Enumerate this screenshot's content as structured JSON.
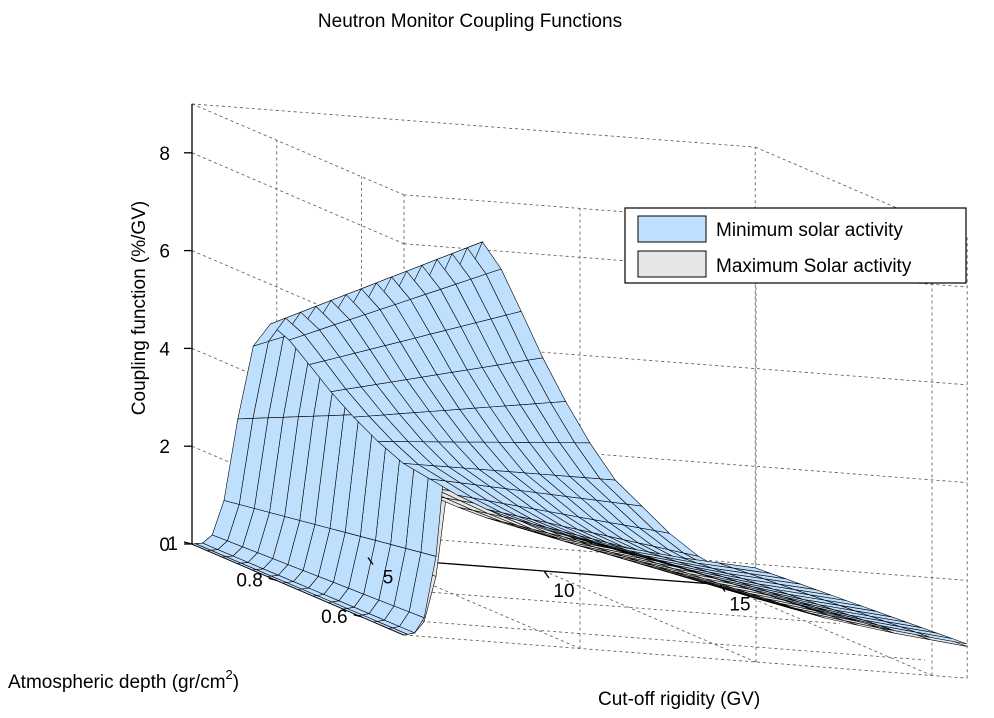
{
  "chart_data": {
    "type": "surface",
    "title": "Neutron Monitor Coupling Functions",
    "xlabel": "Cut-off rigidity (GV)",
    "ylabel": "Atmospheric depth (gr/cm",
    "ylabel_sup": "2",
    "ylabel_close": ")",
    "zlabel": "Coupling function (%/GV)",
    "xlim": [
      0,
      16
    ],
    "ylim": [
      0.5,
      1.0
    ],
    "zlim": [
      0,
      9
    ],
    "x_ticks": [
      5,
      10,
      15
    ],
    "y_ticks": [
      1,
      0.8,
      0.6
    ],
    "y_tick_labels": [
      "1",
      "0.8",
      "0.6"
    ],
    "z_ticks": [
      0,
      2,
      4,
      6,
      8
    ],
    "grid": true,
    "legend_position": "top-right",
    "series": [
      {
        "name": "Minimum solar activity",
        "color": "#bfdfff",
        "edge_color": "#000000",
        "profile_at_depth_0_5": {
          "rigidity": [
            0,
            0.5,
            1,
            1.5,
            2,
            2.5,
            3,
            4,
            5,
            6,
            8,
            10,
            12,
            14,
            16
          ],
          "coupling": [
            0,
            0.1,
            2.0,
            6.4,
            8.3,
            8.0,
            7.3,
            5.8,
            4.5,
            3.5,
            2.2,
            1.5,
            1.1,
            0.85,
            0.7
          ]
        },
        "peak_at_depth_1_0": 4.7
      },
      {
        "name": "Maximum Solar activity",
        "color": "#e6e6e6",
        "edge_color": "#000000",
        "profile_at_depth_0_5": {
          "rigidity": [
            0,
            0.5,
            1,
            1.5,
            2,
            2.5,
            3,
            4,
            5,
            6,
            8,
            10,
            12,
            14,
            16
          ],
          "coupling": [
            0,
            0.1,
            1.5,
            4.8,
            6.1,
            5.9,
            5.4,
            4.4,
            3.5,
            2.8,
            1.9,
            1.3,
            1.0,
            0.8,
            0.65
          ]
        },
        "peak_at_depth_1_0": 3.4
      }
    ]
  }
}
